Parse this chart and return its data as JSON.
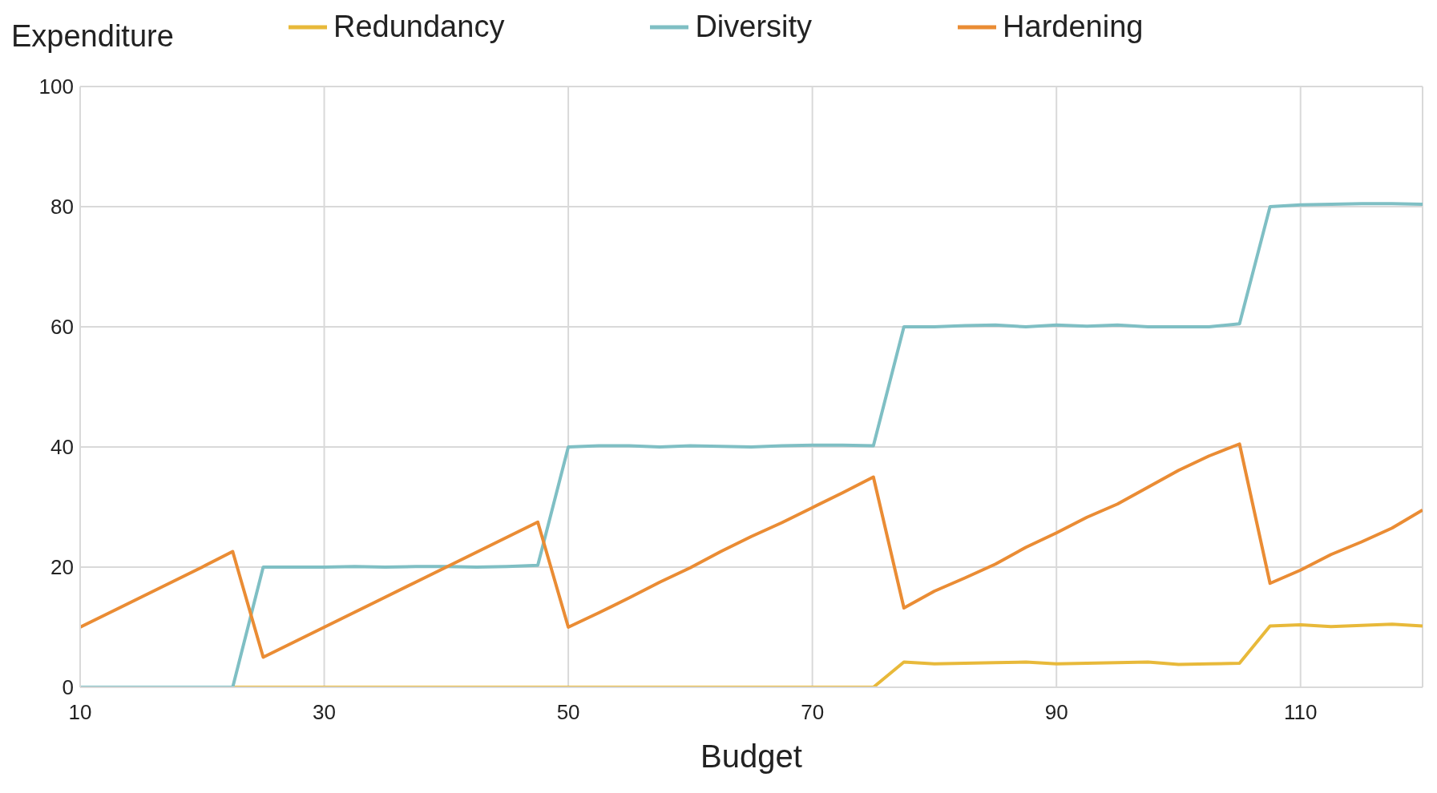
{
  "chart_data": {
    "type": "line",
    "xlabel": "Budget",
    "ylabel": "Expenditure",
    "legend": "top",
    "grid": true,
    "x": [
      10,
      12.5,
      15,
      17.5,
      20,
      22.5,
      25,
      27.5,
      30,
      32.5,
      35,
      37.5,
      40,
      42.5,
      45,
      47.5,
      50,
      52.5,
      55,
      57.5,
      60,
      62.5,
      65,
      67.5,
      70,
      72.5,
      75,
      77.5,
      80,
      82.5,
      85,
      87.5,
      90,
      92.5,
      95,
      97.5,
      100,
      102.5,
      105,
      107.5,
      110,
      112.5,
      115,
      117.5,
      120
    ],
    "xlim": [
      10,
      120
    ],
    "xticks": [
      10,
      30,
      50,
      70,
      90,
      110
    ],
    "ylim": [
      0,
      100
    ],
    "yticks": [
      0,
      20,
      40,
      60,
      80,
      100
    ],
    "series": [
      {
        "name": "Redundancy",
        "color": "#e8b93a",
        "values": [
          null,
          null,
          null,
          null,
          null,
          0,
          0,
          0,
          0,
          0,
          0,
          0,
          0,
          0,
          0,
          0,
          0,
          0,
          0,
          0,
          0,
          0,
          0,
          0,
          0,
          0,
          0,
          4.2,
          3.9,
          4,
          4.1,
          4.2,
          3.9,
          4,
          4.1,
          4.2,
          3.8,
          3.9,
          4,
          10.2,
          10.4,
          10.1,
          10.3,
          10.5,
          10.2
        ]
      },
      {
        "name": "Diversity",
        "color": "#7fbfc4",
        "values": [
          0,
          0,
          0,
          0,
          0,
          0,
          20,
          20,
          20,
          20.1,
          20,
          20.1,
          20.1,
          20,
          20.1,
          20.3,
          40,
          40.2,
          40.2,
          40,
          40.2,
          40.1,
          40,
          40.2,
          40.3,
          40.3,
          40.2,
          60,
          60,
          60.2,
          60.3,
          60,
          60.3,
          60.1,
          60.3,
          60,
          60,
          60,
          60.5,
          80,
          80.3,
          80.4,
          80.5,
          80.5,
          80.4
        ]
      },
      {
        "name": "Hardening",
        "color": "#ea8c34",
        "values": [
          10,
          12.5,
          15,
          17.5,
          20,
          22.6,
          5,
          7.5,
          10,
          12.5,
          15,
          17.5,
          20,
          22.5,
          25,
          27.5,
          10,
          12.4,
          14.9,
          17.5,
          19.9,
          22.6,
          25.1,
          27.4,
          29.9,
          32.4,
          35,
          13.2,
          16,
          18.2,
          20.5,
          23.3,
          25.7,
          28.3,
          30.5,
          33.3,
          36.1,
          38.5,
          40.5,
          17.3,
          19.5,
          22.1,
          24.2,
          26.5,
          29.5
        ]
      }
    ]
  }
}
